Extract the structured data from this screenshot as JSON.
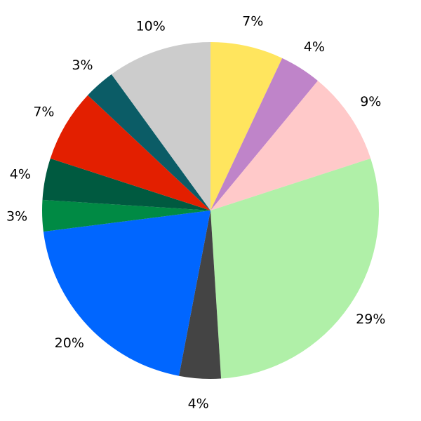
{
  "chart_data": {
    "type": "pie",
    "start": "top",
    "direction": "clockwise",
    "slices": [
      {
        "label": "7%",
        "value": 7,
        "color": "#FFE55E"
      },
      {
        "label": "4%",
        "value": 4,
        "color": "#BF84C9"
      },
      {
        "label": "9%",
        "value": 9,
        "color": "#FFC9C9"
      },
      {
        "label": "29%",
        "value": 29,
        "color": "#B0F0A8"
      },
      {
        "label": "4%",
        "value": 4,
        "color": "#444444"
      },
      {
        "label": "20%",
        "value": 20,
        "color": "#0066FF"
      },
      {
        "label": "3%",
        "value": 3,
        "color": "#008A44"
      },
      {
        "label": "4%",
        "value": 4,
        "color": "#005A40"
      },
      {
        "label": "7%",
        "value": 7,
        "color": "#E31F00"
      },
      {
        "label": "3%",
        "value": 3,
        "color": "#0B5C66"
      },
      {
        "label": "10%",
        "value": 10,
        "color": "#CCCCCC"
      }
    ]
  }
}
